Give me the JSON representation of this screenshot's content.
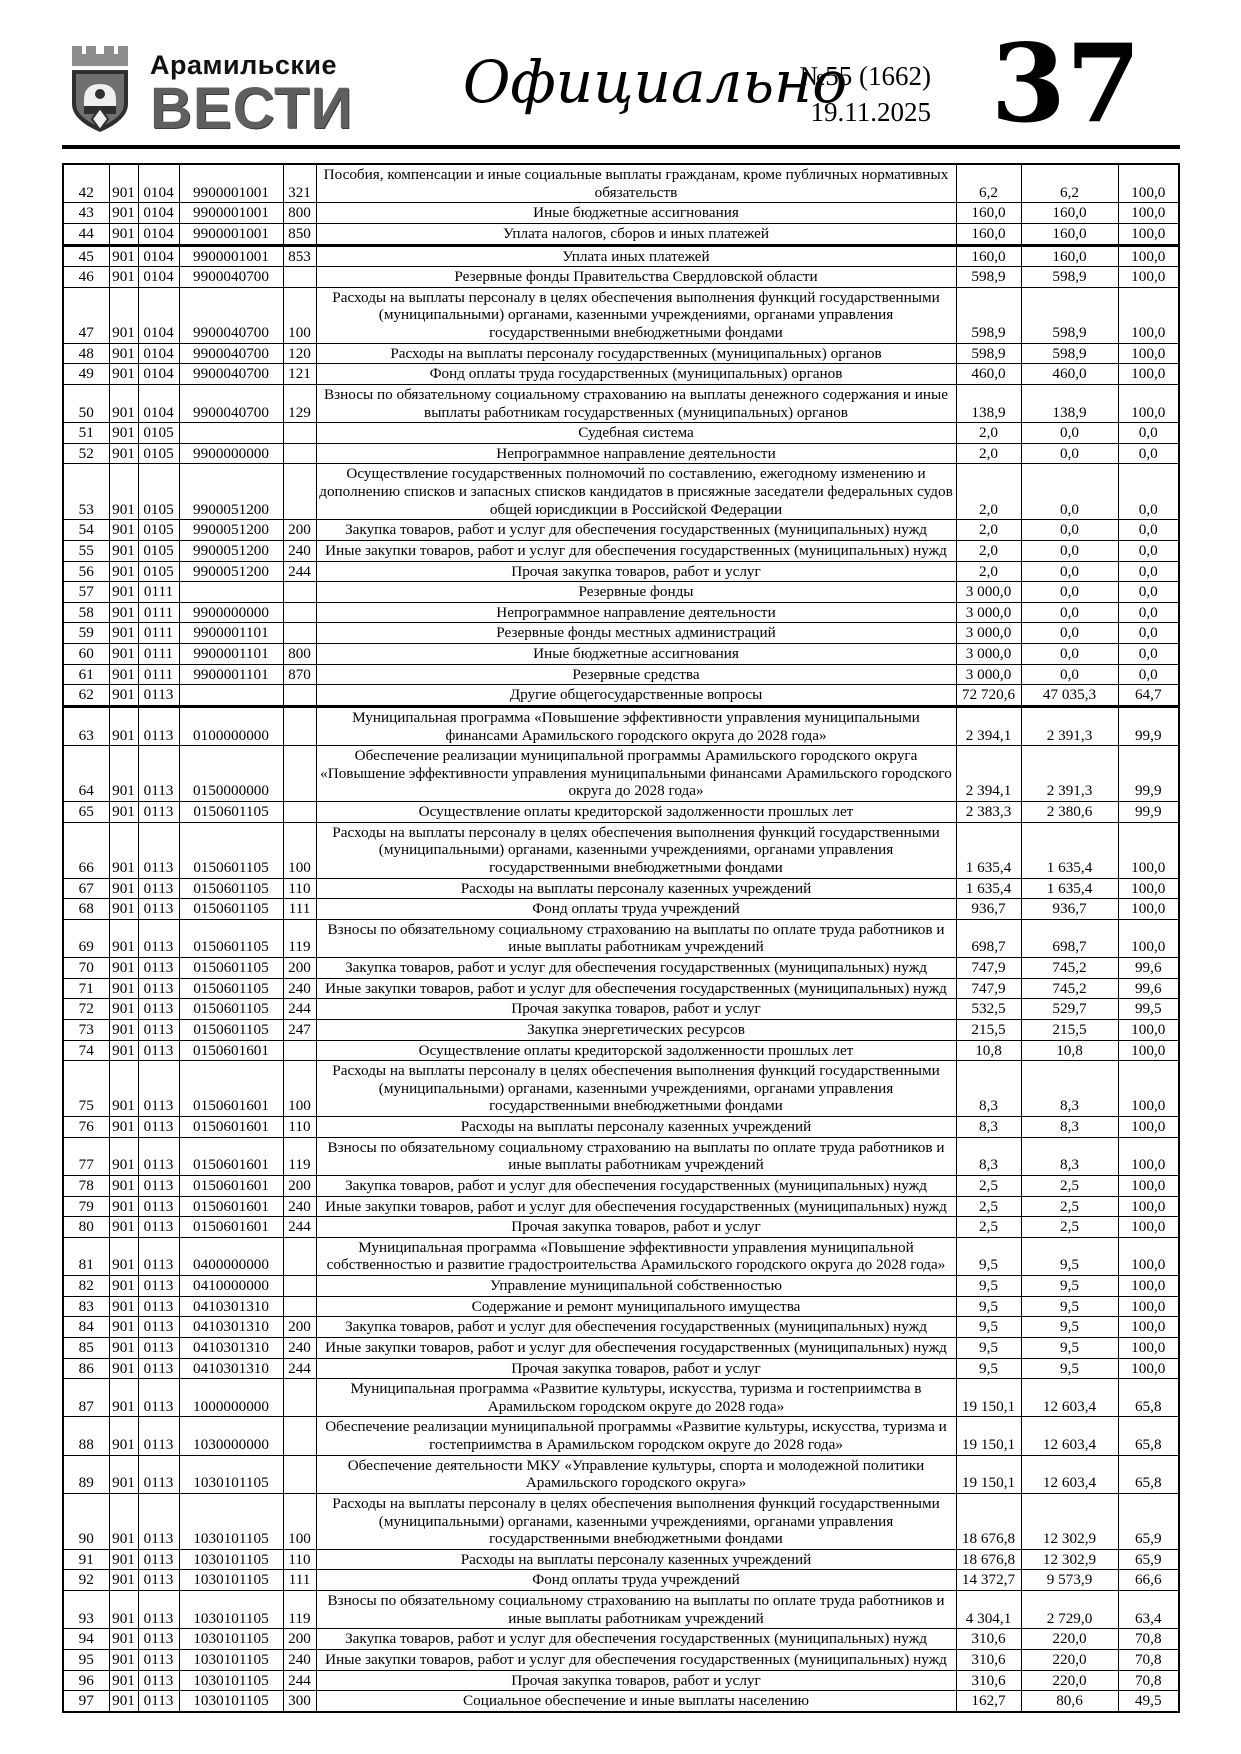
{
  "masthead": {
    "logo_line1": "Арамильские",
    "logo_line2": "ВЕСТИ",
    "emblem_icon": "aramil-city-crest",
    "section_title": "Официально",
    "issue_number": "№55 (1662)",
    "issue_date": "19.11.2025",
    "page_number": "37"
  },
  "table": {
    "rows": [
      {
        "n": "42",
        "grbs": "901",
        "section": "0104",
        "target": "9900001001",
        "vr": "321",
        "desc": "Пособия, компенсации и иные социальные выплаты гражданам, кроме публичных нормативных обязательств",
        "plan": "6,2",
        "fact": "6,2",
        "pct": "100,0"
      },
      {
        "n": "43",
        "grbs": "901",
        "section": "0104",
        "target": "9900001001",
        "vr": "800",
        "desc": "Иные бюджетные ассигнования",
        "plan": "160,0",
        "fact": "160,0",
        "pct": "100,0"
      },
      {
        "n": "44",
        "grbs": "901",
        "section": "0104",
        "target": "9900001001",
        "vr": "850",
        "desc": "Уплата налогов, сборов и иных платежей",
        "plan": "160,0",
        "fact": "160,0",
        "pct": "100,0",
        "thick_after": true
      },
      {
        "n": "45",
        "grbs": "901",
        "section": "0104",
        "target": "9900001001",
        "vr": "853",
        "desc": "Уплата иных платежей",
        "plan": "160,0",
        "fact": "160,0",
        "pct": "100,0"
      },
      {
        "n": "46",
        "grbs": "901",
        "section": "0104",
        "target": "9900040700",
        "vr": "",
        "desc": "Резервные фонды Правительства Свердловской области",
        "plan": "598,9",
        "fact": "598,9",
        "pct": "100,0"
      },
      {
        "n": "47",
        "grbs": "901",
        "section": "0104",
        "target": "9900040700",
        "vr": "100",
        "desc": "Расходы на выплаты персоналу в целях обеспечения выполнения функций государственными (муниципальными) органами, казенными учреждениями, органами управления государственными внебюджетными фондами",
        "plan": "598,9",
        "fact": "598,9",
        "pct": "100,0"
      },
      {
        "n": "48",
        "grbs": "901",
        "section": "0104",
        "target": "9900040700",
        "vr": "120",
        "desc": "Расходы на выплаты персоналу государственных (муниципальных) органов",
        "plan": "598,9",
        "fact": "598,9",
        "pct": "100,0"
      },
      {
        "n": "49",
        "grbs": "901",
        "section": "0104",
        "target": "9900040700",
        "vr": "121",
        "desc": "Фонд оплаты труда государственных (муниципальных) органов",
        "plan": "460,0",
        "fact": "460,0",
        "pct": "100,0"
      },
      {
        "n": "50",
        "grbs": "901",
        "section": "0104",
        "target": "9900040700",
        "vr": "129",
        "desc": "Взносы по обязательному социальному страхованию на выплаты денежного содержания и иные выплаты работникам государственных (муниципальных) органов",
        "plan": "138,9",
        "fact": "138,9",
        "pct": "100,0"
      },
      {
        "n": "51",
        "grbs": "901",
        "section": "0105",
        "target": "",
        "vr": "",
        "desc": "Судебная система",
        "plan": "2,0",
        "fact": "0,0",
        "pct": "0,0"
      },
      {
        "n": "52",
        "grbs": "901",
        "section": "0105",
        "target": "9900000000",
        "vr": "",
        "desc": "Непрограммное направление деятельности",
        "plan": "2,0",
        "fact": "0,0",
        "pct": "0,0"
      },
      {
        "n": "53",
        "grbs": "901",
        "section": "0105",
        "target": "9900051200",
        "vr": "",
        "desc": "Осуществление государственных полномочий по составлению, ежегодному изменению и дополнению списков и запасных списков кандидатов в присяжные заседатели федеральных судов общей юрисдикции в Российской Федерации",
        "plan": "2,0",
        "fact": "0,0",
        "pct": "0,0"
      },
      {
        "n": "54",
        "grbs": "901",
        "section": "0105",
        "target": "9900051200",
        "vr": "200",
        "desc": "Закупка товаров, работ и услуг для обеспечения государственных (муниципальных) нужд",
        "plan": "2,0",
        "fact": "0,0",
        "pct": "0,0"
      },
      {
        "n": "55",
        "grbs": "901",
        "section": "0105",
        "target": "9900051200",
        "vr": "240",
        "desc": "Иные закупки товаров, работ и услуг для обеспечения государственных (муниципальных) нужд",
        "plan": "2,0",
        "fact": "0,0",
        "pct": "0,0"
      },
      {
        "n": "56",
        "grbs": "901",
        "section": "0105",
        "target": "9900051200",
        "vr": "244",
        "desc": "Прочая закупка товаров, работ и услуг",
        "plan": "2,0",
        "fact": "0,0",
        "pct": "0,0"
      },
      {
        "n": "57",
        "grbs": "901",
        "section": "0111",
        "target": "",
        "vr": "",
        "desc": "Резервные фонды",
        "plan": "3 000,0",
        "fact": "0,0",
        "pct": "0,0"
      },
      {
        "n": "58",
        "grbs": "901",
        "section": "0111",
        "target": "9900000000",
        "vr": "",
        "desc": "Непрограммное направление деятельности",
        "plan": "3 000,0",
        "fact": "0,0",
        "pct": "0,0"
      },
      {
        "n": "59",
        "grbs": "901",
        "section": "0111",
        "target": "9900001101",
        "vr": "",
        "desc": "Резервные фонды местных администраций",
        "plan": "3 000,0",
        "fact": "0,0",
        "pct": "0,0"
      },
      {
        "n": "60",
        "grbs": "901",
        "section": "0111",
        "target": "9900001101",
        "vr": "800",
        "desc": "Иные бюджетные ассигнования",
        "plan": "3 000,0",
        "fact": "0,0",
        "pct": "0,0"
      },
      {
        "n": "61",
        "grbs": "901",
        "section": "0111",
        "target": "9900001101",
        "vr": "870",
        "desc": "Резервные средства",
        "plan": "3 000,0",
        "fact": "0,0",
        "pct": "0,0"
      },
      {
        "n": "62",
        "grbs": "901",
        "section": "0113",
        "target": "",
        "vr": "",
        "desc": "Другие общегосударственные вопросы",
        "plan": "72 720,6",
        "fact": "47 035,3",
        "pct": "64,7",
        "thick_after": true
      },
      {
        "n": "63",
        "grbs": "901",
        "section": "0113",
        "target": "0100000000",
        "vr": "",
        "desc": "Муниципальная программа «Повышение эффективности управления муниципальными финансами Арамильского городского округа до 2028 года»",
        "plan": "2 394,1",
        "fact": "2 391,3",
        "pct": "99,9"
      },
      {
        "n": "64",
        "grbs": "901",
        "section": "0113",
        "target": "0150000000",
        "vr": "",
        "desc": "Обеспечение реализации муниципальной программы Арамильского городского округа «Повышение эффективности управления муниципальными финансами Арамильского городского округа до 2028 года»",
        "plan": "2 394,1",
        "fact": "2 391,3",
        "pct": "99,9"
      },
      {
        "n": "65",
        "grbs": "901",
        "section": "0113",
        "target": "0150601105",
        "vr": "",
        "desc": "Осуществление оплаты кредиторской задолженности прошлых лет",
        "plan": "2 383,3",
        "fact": "2 380,6",
        "pct": "99,9"
      },
      {
        "n": "66",
        "grbs": "901",
        "section": "0113",
        "target": "0150601105",
        "vr": "100",
        "desc": "Расходы на выплаты персоналу в целях обеспечения выполнения функций государственными (муниципальными) органами, казенными учреждениями, органами управления государственными внебюджетными фондами",
        "plan": "1 635,4",
        "fact": "1 635,4",
        "pct": "100,0"
      },
      {
        "n": "67",
        "grbs": "901",
        "section": "0113",
        "target": "0150601105",
        "vr": "110",
        "desc": "Расходы на выплаты персоналу казенных учреждений",
        "plan": "1 635,4",
        "fact": "1 635,4",
        "pct": "100,0"
      },
      {
        "n": "68",
        "grbs": "901",
        "section": "0113",
        "target": "0150601105",
        "vr": "111",
        "desc": "Фонд оплаты труда учреждений",
        "plan": "936,7",
        "fact": "936,7",
        "pct": "100,0"
      },
      {
        "n": "69",
        "grbs": "901",
        "section": "0113",
        "target": "0150601105",
        "vr": "119",
        "desc": "Взносы по обязательному социальному страхованию на выплаты по оплате труда работников и иные выплаты работникам учреждений",
        "plan": "698,7",
        "fact": "698,7",
        "pct": "100,0"
      },
      {
        "n": "70",
        "grbs": "901",
        "section": "0113",
        "target": "0150601105",
        "vr": "200",
        "desc": "Закупка товаров, работ и услуг для обеспечения государственных (муниципальных) нужд",
        "plan": "747,9",
        "fact": "745,2",
        "pct": "99,6"
      },
      {
        "n": "71",
        "grbs": "901",
        "section": "0113",
        "target": "0150601105",
        "vr": "240",
        "desc": "Иные закупки товаров, работ и услуг для обеспечения государственных (муниципальных) нужд",
        "plan": "747,9",
        "fact": "745,2",
        "pct": "99,6"
      },
      {
        "n": "72",
        "grbs": "901",
        "section": "0113",
        "target": "0150601105",
        "vr": "244",
        "desc": "Прочая закупка товаров, работ и услуг",
        "plan": "532,5",
        "fact": "529,7",
        "pct": "99,5"
      },
      {
        "n": "73",
        "grbs": "901",
        "section": "0113",
        "target": "0150601105",
        "vr": "247",
        "desc": "Закупка энергетических ресурсов",
        "plan": "215,5",
        "fact": "215,5",
        "pct": "100,0"
      },
      {
        "n": "74",
        "grbs": "901",
        "section": "0113",
        "target": "0150601601",
        "vr": "",
        "desc": "Осуществление оплаты кредиторской задолженности прошлых лет",
        "plan": "10,8",
        "fact": "10,8",
        "pct": "100,0"
      },
      {
        "n": "75",
        "grbs": "901",
        "section": "0113",
        "target": "0150601601",
        "vr": "100",
        "desc": "Расходы на выплаты персоналу в целях обеспечения выполнения функций государственными (муниципальными) органами, казенными учреждениями, органами управления государственными внебюджетными фондами",
        "plan": "8,3",
        "fact": "8,3",
        "pct": "100,0"
      },
      {
        "n": "76",
        "grbs": "901",
        "section": "0113",
        "target": "0150601601",
        "vr": "110",
        "desc": "Расходы на выплаты персоналу казенных учреждений",
        "plan": "8,3",
        "fact": "8,3",
        "pct": "100,0"
      },
      {
        "n": "77",
        "grbs": "901",
        "section": "0113",
        "target": "0150601601",
        "vr": "119",
        "desc": "Взносы по обязательному социальному страхованию на выплаты по оплате труда работников и иные выплаты работникам учреждений",
        "plan": "8,3",
        "fact": "8,3",
        "pct": "100,0"
      },
      {
        "n": "78",
        "grbs": "901",
        "section": "0113",
        "target": "0150601601",
        "vr": "200",
        "desc": "Закупка товаров, работ и услуг для обеспечения государственных (муниципальных) нужд",
        "plan": "2,5",
        "fact": "2,5",
        "pct": "100,0"
      },
      {
        "n": "79",
        "grbs": "901",
        "section": "0113",
        "target": "0150601601",
        "vr": "240",
        "desc": "Иные закупки товаров, работ и услуг для обеспечения государственных (муниципальных) нужд",
        "plan": "2,5",
        "fact": "2,5",
        "pct": "100,0"
      },
      {
        "n": "80",
        "grbs": "901",
        "section": "0113",
        "target": "0150601601",
        "vr": "244",
        "desc": "Прочая закупка товаров, работ и услуг",
        "plan": "2,5",
        "fact": "2,5",
        "pct": "100,0"
      },
      {
        "n": "81",
        "grbs": "901",
        "section": "0113",
        "target": "0400000000",
        "vr": "",
        "desc": "Муниципальная программа «Повышение эффективности управления муниципальной собственностью и развитие градостроительства Арамильского городского округа до 2028 года»",
        "plan": "9,5",
        "fact": "9,5",
        "pct": "100,0"
      },
      {
        "n": "82",
        "grbs": "901",
        "section": "0113",
        "target": "0410000000",
        "vr": "",
        "desc": "Управление муниципальной собственностью",
        "plan": "9,5",
        "fact": "9,5",
        "pct": "100,0"
      },
      {
        "n": "83",
        "grbs": "901",
        "section": "0113",
        "target": "0410301310",
        "vr": "",
        "desc": "Содержание и ремонт муниципального имущества",
        "plan": "9,5",
        "fact": "9,5",
        "pct": "100,0"
      },
      {
        "n": "84",
        "grbs": "901",
        "section": "0113",
        "target": "0410301310",
        "vr": "200",
        "desc": "Закупка товаров, работ и услуг для обеспечения государственных (муниципальных) нужд",
        "plan": "9,5",
        "fact": "9,5",
        "pct": "100,0"
      },
      {
        "n": "85",
        "grbs": "901",
        "section": "0113",
        "target": "0410301310",
        "vr": "240",
        "desc": "Иные закупки товаров, работ и услуг для обеспечения государственных (муниципальных) нужд",
        "plan": "9,5",
        "fact": "9,5",
        "pct": "100,0"
      },
      {
        "n": "86",
        "grbs": "901",
        "section": "0113",
        "target": "0410301310",
        "vr": "244",
        "desc": "Прочая закупка товаров, работ и услуг",
        "plan": "9,5",
        "fact": "9,5",
        "pct": "100,0"
      },
      {
        "n": "87",
        "grbs": "901",
        "section": "0113",
        "target": "1000000000",
        "vr": "",
        "desc": "Муниципальная программа «Развитие культуры, искусства, туризма и гостеприимства в Арамильском городском округе до 2028 года»",
        "plan": "19 150,1",
        "fact": "12 603,4",
        "pct": "65,8"
      },
      {
        "n": "88",
        "grbs": "901",
        "section": "0113",
        "target": "1030000000",
        "vr": "",
        "desc": "Обеспечение реализации муниципальной программы «Развитие культуры, искусства, туризма и гостеприимства в Арамильском городском округе до 2028 года»",
        "plan": "19 150,1",
        "fact": "12 603,4",
        "pct": "65,8"
      },
      {
        "n": "89",
        "grbs": "901",
        "section": "0113",
        "target": "1030101105",
        "vr": "",
        "desc": "Обеспечение деятельности МКУ «Управление культуры, спорта и молодежной политики Арамильского городского округа»",
        "plan": "19 150,1",
        "fact": "12 603,4",
        "pct": "65,8"
      },
      {
        "n": "90",
        "grbs": "901",
        "section": "0113",
        "target": "1030101105",
        "vr": "100",
        "desc": "Расходы на выплаты персоналу в целях обеспечения выполнения функций государственными (муниципальными) органами, казенными учреждениями, органами управления государственными внебюджетными фондами",
        "plan": "18 676,8",
        "fact": "12 302,9",
        "pct": "65,9"
      },
      {
        "n": "91",
        "grbs": "901",
        "section": "0113",
        "target": "1030101105",
        "vr": "110",
        "desc": "Расходы на выплаты персоналу казенных учреждений",
        "plan": "18 676,8",
        "fact": "12 302,9",
        "pct": "65,9"
      },
      {
        "n": "92",
        "grbs": "901",
        "section": "0113",
        "target": "1030101105",
        "vr": "111",
        "desc": "Фонд оплаты труда учреждений",
        "plan": "14 372,7",
        "fact": "9 573,9",
        "pct": "66,6"
      },
      {
        "n": "93",
        "grbs": "901",
        "section": "0113",
        "target": "1030101105",
        "vr": "119",
        "desc": "Взносы по обязательному социальному страхованию на выплаты по оплате труда работников и иные выплаты работникам учреждений",
        "plan": "4 304,1",
        "fact": "2 729,0",
        "pct": "63,4"
      },
      {
        "n": "94",
        "grbs": "901",
        "section": "0113",
        "target": "1030101105",
        "vr": "200",
        "desc": "Закупка товаров, работ и услуг для обеспечения государственных (муниципальных) нужд",
        "plan": "310,6",
        "fact": "220,0",
        "pct": "70,8"
      },
      {
        "n": "95",
        "grbs": "901",
        "section": "0113",
        "target": "1030101105",
        "vr": "240",
        "desc": "Иные закупки товаров, работ и услуг для обеспечения государственных (муниципальных) нужд",
        "plan": "310,6",
        "fact": "220,0",
        "pct": "70,8"
      },
      {
        "n": "96",
        "grbs": "901",
        "section": "0113",
        "target": "1030101105",
        "vr": "244",
        "desc": "Прочая закупка товаров, работ и услуг",
        "plan": "310,6",
        "fact": "220,0",
        "pct": "70,8"
      },
      {
        "n": "97",
        "grbs": "901",
        "section": "0113",
        "target": "1030101105",
        "vr": "300",
        "desc": "Социальное обеспечение и иные выплаты населению",
        "plan": "162,7",
        "fact": "80,6",
        "pct": "49,5"
      }
    ]
  }
}
